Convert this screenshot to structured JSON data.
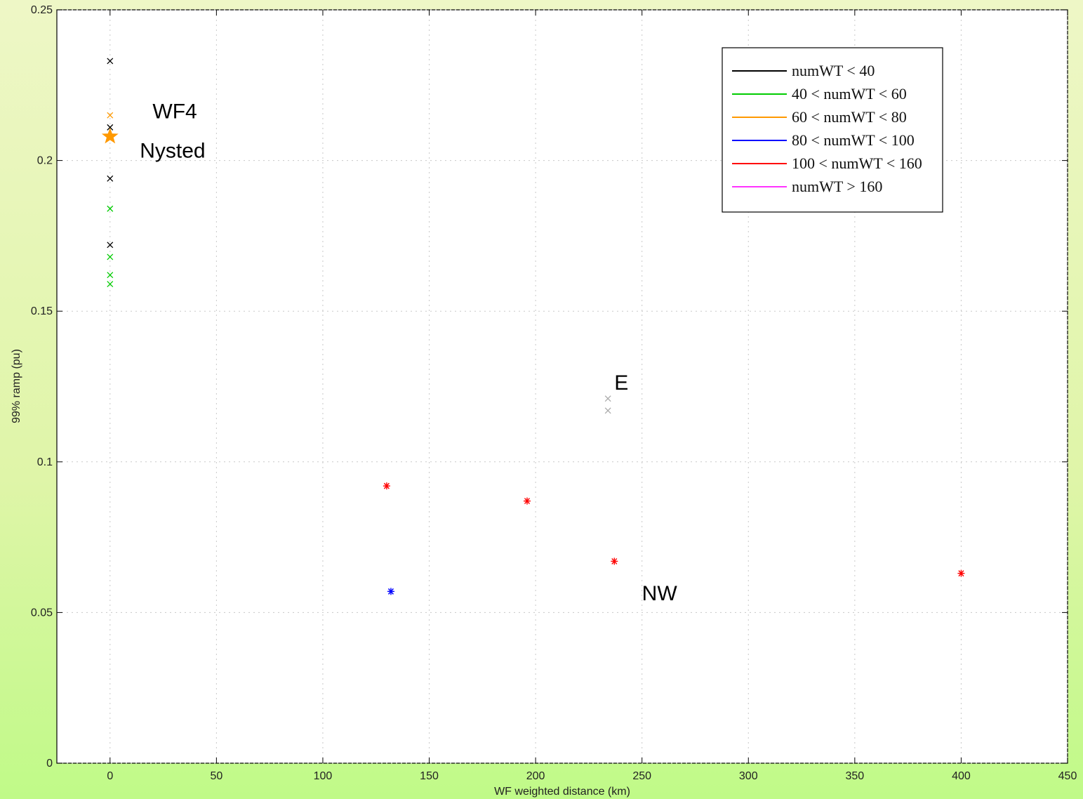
{
  "chart_data": {
    "type": "scatter",
    "title": "",
    "xlabel": "WF weighted distance (km)",
    "ylabel": "99% ramp (pu)",
    "xlim": [
      -25,
      450
    ],
    "ylim": [
      0,
      0.25
    ],
    "xticks": [
      0,
      50,
      100,
      150,
      200,
      250,
      300,
      350,
      400,
      450
    ],
    "yticks": [
      0,
      0.05,
      0.1,
      0.15,
      0.2,
      0.25
    ],
    "xtick_labels": [
      "0",
      "50",
      "100",
      "150",
      "200",
      "250",
      "300",
      "350",
      "400",
      "450"
    ],
    "ytick_labels": [
      "0",
      "0.05",
      "0.1",
      "0.15",
      "0.2",
      "0.25"
    ],
    "grid": true,
    "legend_position": "top-right",
    "legend": [
      {
        "label": "numWT < 40",
        "color": "#000000"
      },
      {
        "label": "40 < numWT < 60",
        "color": "#00cc00"
      },
      {
        "label": "60 < numWT < 80",
        "color": "#ff9900"
      },
      {
        "label": "80 < numWT < 100",
        "color": "#0000ff"
      },
      {
        "label": "100 < numWT < 160",
        "color": "#ff0000"
      },
      {
        "label": "numWT > 160",
        "color": "#ff33ff"
      }
    ],
    "series": [
      {
        "color": "#000000",
        "marker": "x",
        "points": [
          [
            0,
            0.233
          ],
          [
            0,
            0.211
          ],
          [
            0,
            0.194
          ],
          [
            0,
            0.172
          ]
        ]
      },
      {
        "color": "#00cc00",
        "marker": "x",
        "points": [
          [
            0,
            0.184
          ],
          [
            0,
            0.168
          ],
          [
            0,
            0.162
          ],
          [
            0,
            0.159
          ]
        ]
      },
      {
        "color": "#ff9900",
        "marker": "x",
        "points": [
          [
            0,
            0.215
          ]
        ]
      },
      {
        "color": "#ff9900",
        "marker": "star",
        "points": [
          [
            0,
            0.208
          ]
        ]
      },
      {
        "color": "#0000ff",
        "marker": "asterisk",
        "points": [
          [
            132,
            0.057
          ]
        ]
      },
      {
        "color": "#ff0000",
        "marker": "asterisk",
        "points": [
          [
            130,
            0.092
          ],
          [
            196,
            0.087
          ],
          [
            237,
            0.067
          ],
          [
            400,
            0.063
          ]
        ]
      },
      {
        "color": "#aaaaaa",
        "marker": "x",
        "points": [
          [
            234,
            0.117
          ],
          [
            234,
            0.121
          ]
        ]
      }
    ],
    "annotations": [
      {
        "text": "WF4",
        "x": 20,
        "y": 0.214
      },
      {
        "text": "Nysted",
        "x": 14,
        "y": 0.201
      },
      {
        "text": "E",
        "x": 237,
        "y": 0.124
      },
      {
        "text": "NW",
        "x": 250,
        "y": 0.054
      }
    ]
  }
}
